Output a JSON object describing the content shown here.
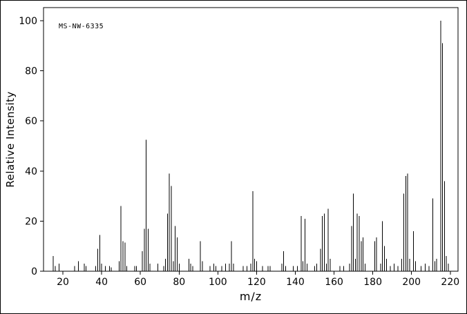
{
  "figure": {
    "background": "#ffffff",
    "foreground": "#000000"
  },
  "chart_data": {
    "type": "bar",
    "title": "MS-NW-6335",
    "xlabel": "m/z",
    "ylabel": "Relative Intensity",
    "xlim": [
      10,
      224
    ],
    "ylim": [
      0,
      100
    ],
    "grid": false,
    "legend": "none",
    "x_ticks": [
      20,
      40,
      60,
      80,
      100,
      120,
      140,
      160,
      180,
      200,
      220
    ],
    "y_ticks": [
      0,
      20,
      40,
      60,
      80,
      100
    ],
    "colors": {
      "line": "#000000",
      "frame": "#000000",
      "background": "#ffffff"
    },
    "peaks": [
      [
        15,
        6
      ],
      [
        16,
        2
      ],
      [
        18,
        3
      ],
      [
        26,
        2
      ],
      [
        28,
        4
      ],
      [
        31,
        3
      ],
      [
        32,
        2
      ],
      [
        37,
        2
      ],
      [
        38,
        9
      ],
      [
        39,
        14.5
      ],
      [
        40,
        3
      ],
      [
        42,
        2
      ],
      [
        44,
        2
      ],
      [
        45,
        1.5
      ],
      [
        49,
        4
      ],
      [
        50,
        26
      ],
      [
        51,
        12
      ],
      [
        52,
        11.5
      ],
      [
        53,
        2
      ],
      [
        57,
        2
      ],
      [
        58,
        2
      ],
      [
        61,
        8
      ],
      [
        62,
        17
      ],
      [
        63,
        52.5
      ],
      [
        64,
        17
      ],
      [
        65,
        3
      ],
      [
        69,
        3
      ],
      [
        72,
        2
      ],
      [
        73,
        5
      ],
      [
        74,
        23
      ],
      [
        75,
        39
      ],
      [
        76,
        34
      ],
      [
        77,
        4
      ],
      [
        78,
        18
      ],
      [
        79,
        13.5
      ],
      [
        80,
        3
      ],
      [
        85,
        5
      ],
      [
        86,
        3
      ],
      [
        87,
        2
      ],
      [
        91,
        12
      ],
      [
        92,
        4
      ],
      [
        96,
        2
      ],
      [
        98,
        3
      ],
      [
        99,
        2
      ],
      [
        102,
        2
      ],
      [
        104,
        3
      ],
      [
        106,
        3
      ],
      [
        107,
        12
      ],
      [
        108,
        3
      ],
      [
        113,
        2
      ],
      [
        115,
        2
      ],
      [
        117,
        3
      ],
      [
        118,
        32
      ],
      [
        119,
        5
      ],
      [
        120,
        4
      ],
      [
        123,
        2
      ],
      [
        126,
        2
      ],
      [
        127,
        2
      ],
      [
        133,
        3
      ],
      [
        134,
        8
      ],
      [
        135,
        2
      ],
      [
        139,
        2
      ],
      [
        141,
        2
      ],
      [
        143,
        22
      ],
      [
        144,
        4
      ],
      [
        145,
        21
      ],
      [
        146,
        3
      ],
      [
        150,
        2
      ],
      [
        151,
        3
      ],
      [
        153,
        9
      ],
      [
        154,
        22
      ],
      [
        155,
        23
      ],
      [
        156,
        3
      ],
      [
        157,
        25
      ],
      [
        158,
        5
      ],
      [
        163,
        2
      ],
      [
        165,
        2
      ],
      [
        168,
        3
      ],
      [
        169,
        18
      ],
      [
        170,
        31
      ],
      [
        171,
        5
      ],
      [
        172,
        23
      ],
      [
        173,
        22
      ],
      [
        174,
        12
      ],
      [
        175,
        13.5
      ],
      [
        176,
        3
      ],
      [
        181,
        12
      ],
      [
        182,
        13.5
      ],
      [
        184,
        3
      ],
      [
        185,
        20
      ],
      [
        186,
        10
      ],
      [
        187,
        5
      ],
      [
        189,
        2
      ],
      [
        191,
        3
      ],
      [
        193,
        2
      ],
      [
        195,
        5
      ],
      [
        196,
        31
      ],
      [
        197,
        38
      ],
      [
        198,
        39
      ],
      [
        199,
        5
      ],
      [
        201,
        16
      ],
      [
        202,
        4
      ],
      [
        205,
        2
      ],
      [
        207,
        3
      ],
      [
        209,
        2
      ],
      [
        211,
        29
      ],
      [
        212,
        4
      ],
      [
        213,
        5
      ],
      [
        215,
        100
      ],
      [
        216,
        91
      ],
      [
        217,
        36
      ],
      [
        218,
        6
      ],
      [
        219,
        3
      ]
    ]
  }
}
